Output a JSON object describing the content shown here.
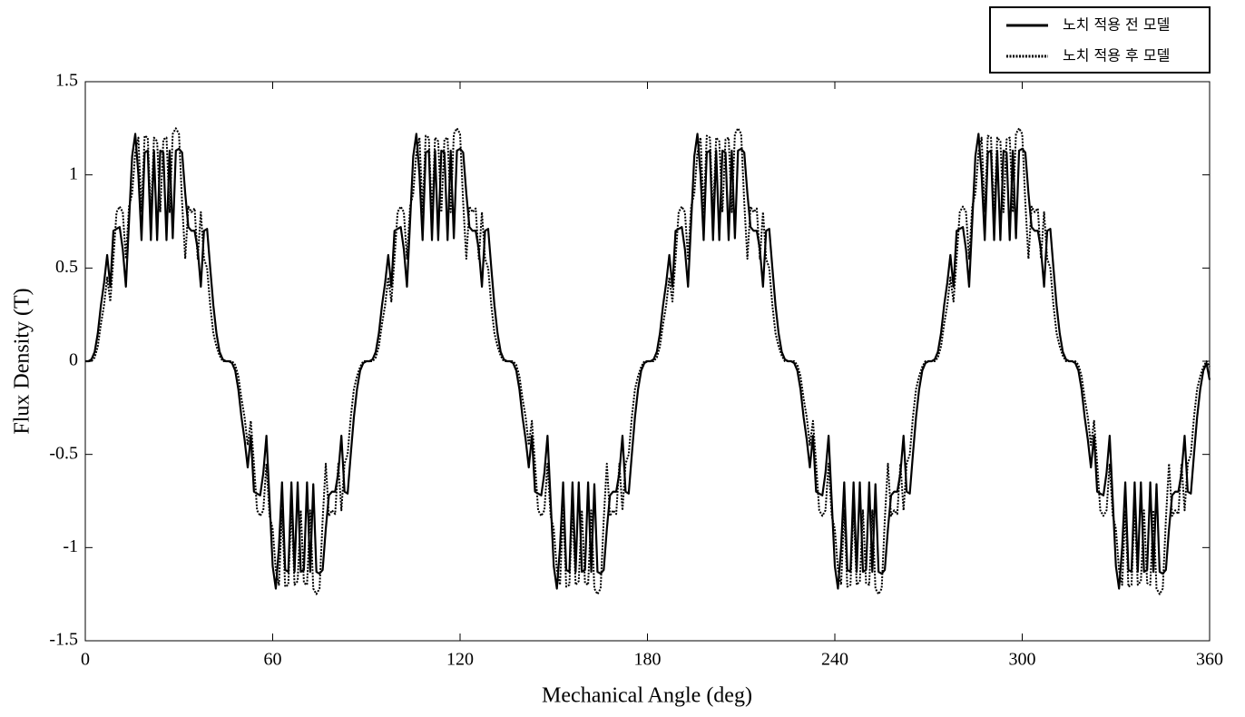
{
  "chart_data": {
    "type": "line",
    "xlabel": "Mechanical Angle (deg)",
    "ylabel": "Flux Density (T)",
    "xlim": [
      0,
      360
    ],
    "xticks": [
      0,
      60,
      120,
      180,
      240,
      300,
      360
    ],
    "ylim": [
      -1.5,
      1.5
    ],
    "yticks": [
      -1.5,
      -1,
      -0.5,
      0,
      0.5,
      1,
      1.5
    ],
    "grid": false,
    "legend": "upper right",
    "x": [
      0,
      1,
      2,
      3,
      4,
      5,
      6,
      7,
      8,
      9,
      10,
      11,
      12,
      13,
      14,
      15,
      16,
      17,
      18,
      19,
      20,
      21,
      22,
      23,
      24,
      25,
      26,
      27,
      28,
      29,
      30,
      31,
      32,
      33,
      34,
      35,
      36,
      37,
      38,
      39,
      40,
      41,
      42,
      43,
      44,
      45,
      46,
      47,
      48,
      49,
      50,
      51,
      52,
      53,
      54,
      55,
      56,
      57,
      58,
      59,
      60,
      61,
      62,
      63,
      64,
      65,
      66,
      67,
      68,
      69,
      70,
      71,
      72,
      73,
      74,
      75,
      76,
      77,
      78,
      79,
      80,
      81,
      82,
      83,
      84,
      85,
      86,
      87,
      88,
      89,
      90,
      91,
      92,
      93,
      94,
      95,
      96,
      97,
      98,
      99,
      100,
      101,
      102,
      103,
      104,
      105,
      106,
      107,
      108,
      109,
      110,
      111,
      112,
      113,
      114,
      115,
      116,
      117,
      118,
      119,
      120,
      121,
      122,
      123,
      124,
      125,
      126,
      127,
      128,
      129,
      130,
      131,
      132,
      133,
      134,
      135,
      136,
      137,
      138,
      139,
      140,
      141,
      142,
      143,
      144,
      145,
      146,
      147,
      148,
      149,
      150,
      151,
      152,
      153,
      154,
      155,
      156,
      157,
      158,
      159,
      160,
      161,
      162,
      163,
      164,
      165,
      166,
      167,
      168,
      169,
      170,
      171,
      172,
      173,
      174,
      175,
      176,
      177,
      178,
      179,
      180,
      181,
      182,
      183,
      184,
      185,
      186,
      187,
      188,
      189,
      190,
      191,
      192,
      193,
      194,
      195,
      196,
      197,
      198,
      199,
      200,
      201,
      202,
      203,
      204,
      205,
      206,
      207,
      208,
      209,
      210,
      211,
      212,
      213,
      214,
      215,
      216,
      217,
      218,
      219,
      220,
      221,
      222,
      223,
      224,
      225,
      226,
      227,
      228,
      229,
      230,
      231,
      232,
      233,
      234,
      235,
      236,
      237,
      238,
      239,
      240,
      241,
      242,
      243,
      244,
      245,
      246,
      247,
      248,
      249,
      250,
      251,
      252,
      253,
      254,
      255,
      256,
      257,
      258,
      259,
      260,
      261,
      262,
      263,
      264,
      265,
      266,
      267,
      268,
      269,
      270,
      271,
      272,
      273,
      274,
      275,
      276,
      277,
      278,
      279,
      280,
      281,
      282,
      283,
      284,
      285,
      286,
      287,
      288,
      289,
      290,
      291,
      292,
      293,
      294,
      295,
      296,
      297,
      298,
      299,
      300,
      301,
      302,
      303,
      304,
      305,
      306,
      307,
      308,
      309,
      310,
      311,
      312,
      313,
      314,
      315,
      316,
      317,
      318,
      319,
      320,
      321,
      322,
      323,
      324,
      325,
      326,
      327,
      328,
      329,
      330,
      331,
      332,
      333,
      334,
      335,
      336,
      337,
      338,
      339,
      340,
      341,
      342,
      343,
      344,
      345,
      346,
      347,
      348,
      349,
      350,
      351,
      352,
      353,
      354,
      355,
      356,
      357,
      358,
      359,
      360
    ],
    "series": [
      {
        "name": "노치 적용 전 모델",
        "color": "#000000",
        "style": "solid",
        "values": [
          0,
          0,
          0.01,
          0.05,
          0.15,
          0.3,
          0.42,
          0.57,
          0.4,
          0.7,
          0.71,
          0.72,
          0.6,
          0.4,
          0.75,
          1.1,
          1.22,
          1,
          0.65,
          1.12,
          1.13,
          0.65,
          1.13,
          0.65,
          1.13,
          1.12,
          0.65,
          1.13,
          0.66,
          1.13,
          1.14,
          1.12,
          0.9,
          0.72,
          0.7,
          0.7,
          0.6,
          0.4,
          0.7,
          0.71,
          0.5,
          0.3,
          0.15,
          0.05,
          0.01,
          0,
          0,
          -0.01,
          -0.05,
          -0.15,
          -0.3,
          -0.42,
          -0.57,
          -0.4,
          -0.7,
          -0.71,
          -0.72,
          -0.6,
          -0.4,
          -0.75,
          -1.1,
          -1.22,
          -1,
          -0.65,
          -1.12,
          -1.13,
          -0.65,
          -1.13,
          -0.65,
          -1.13,
          -1.12,
          -0.65,
          -1.13,
          -0.66,
          -1.13,
          -1.14,
          -1.12,
          -0.9,
          -0.72,
          -0.7,
          -0.7,
          -0.6,
          -0.4,
          -0.7,
          -0.71,
          -0.5,
          -0.3,
          -0.15,
          -0.05,
          -0.01,
          0,
          0,
          0.01,
          0.05,
          0.15,
          0.3,
          0.42,
          0.57,
          0.4,
          0.7,
          0.71,
          0.72,
          0.6,
          0.4,
          0.75,
          1.1,
          1.22,
          1,
          0.65,
          1.12,
          1.13,
          0.65,
          1.13,
          0.65,
          1.13,
          1.12,
          0.65,
          1.13,
          0.66,
          1.13,
          1.14,
          1.12,
          0.9,
          0.72,
          0.7,
          0.7,
          0.6,
          0.4,
          0.7,
          0.71,
          0.5,
          0.3,
          0.15,
          0.05,
          0.01,
          0,
          0,
          -0.01,
          -0.05,
          -0.15,
          -0.3,
          -0.42,
          -0.57,
          -0.4,
          -0.7,
          -0.71,
          -0.72,
          -0.6,
          -0.4,
          -0.75,
          -1.1,
          -1.22,
          -1,
          -0.65,
          -1.12,
          -1.13,
          -0.65,
          -1.13,
          -0.65,
          -1.13,
          -1.12,
          -0.65,
          -1.13,
          -0.66,
          -1.13,
          -1.14,
          -1.12,
          -0.9,
          -0.72,
          -0.7,
          -0.7,
          -0.6,
          -0.4,
          -0.7,
          -0.71,
          -0.5,
          -0.3,
          -0.15,
          -0.05,
          -0.01,
          0,
          0,
          0.01,
          0.05,
          0.15,
          0.3,
          0.42,
          0.57,
          0.4,
          0.7,
          0.71,
          0.72,
          0.6,
          0.4,
          0.75,
          1.1,
          1.22,
          1,
          0.65,
          1.12,
          1.13,
          0.65,
          1.13,
          0.65,
          1.13,
          1.12,
          0.65,
          1.13,
          0.66,
          1.13,
          1.14,
          1.12,
          0.9,
          0.72,
          0.7,
          0.7,
          0.6,
          0.4,
          0.7,
          0.71,
          0.5,
          0.3,
          0.15,
          0.05,
          0.01,
          0,
          0,
          -0.01,
          -0.05,
          -0.15,
          -0.3,
          -0.42,
          -0.57,
          -0.4,
          -0.7,
          -0.71,
          -0.72,
          -0.6,
          -0.4,
          -0.75,
          -1.1,
          -1.22,
          -1,
          -0.65,
          -1.12,
          -1.13,
          -0.65,
          -1.13,
          -0.65,
          -1.13,
          -1.12,
          -0.65,
          -1.13,
          -0.66,
          -1.13,
          -1.14,
          -1.12,
          -0.9,
          -0.72,
          -0.7,
          -0.7,
          -0.6,
          -0.4,
          -0.7,
          -0.71,
          -0.5,
          -0.3,
          -0.15,
          -0.05,
          -0.01,
          0,
          0,
          0.01,
          0.05,
          0.15,
          0.3,
          0.42,
          0.57,
          0.4,
          0.7,
          0.71,
          0.72,
          0.6,
          0.4,
          0.75,
          1.1,
          1.22,
          1,
          0.65,
          1.12,
          1.13,
          0.65,
          1.13,
          0.65,
          1.13,
          1.12,
          0.65,
          1.13,
          0.66,
          1.13,
          1.14,
          1.12,
          0.9,
          0.72,
          0.7,
          0.7,
          0.6,
          0.4,
          0.7,
          0.71,
          0.5,
          0.3,
          0.15,
          0.05,
          0.01,
          0,
          0,
          -0.01,
          -0.05,
          -0.15,
          -0.3,
          -0.42,
          -0.57,
          -0.4,
          -0.7,
          -0.71,
          -0.72,
          -0.6,
          -0.4,
          -0.75,
          -1.1,
          -1.22,
          -1,
          -0.65,
          -1.12,
          -1.13,
          -0.65,
          -1.13,
          -0.65,
          -1.13,
          -1.12,
          -0.65,
          -1.13,
          -0.66,
          -1.13,
          -1.14,
          -1.12,
          -0.9,
          -0.72,
          -0.7,
          -0.7,
          -0.6,
          -0.4,
          -0.7,
          -0.71,
          -0.5,
          -0.3,
          -0.15,
          -0.05,
          -0.01,
          -0.1
        ]
      },
      {
        "name": "노치 적용 후 모델",
        "color": "#000000",
        "style": "dotted",
        "values": [
          0,
          0,
          0,
          0.02,
          0.08,
          0.2,
          0.3,
          0.45,
          0.32,
          0.55,
          0.8,
          0.83,
          0.8,
          0.55,
          0.83,
          0.9,
          1.12,
          1.2,
          0.8,
          1.21,
          1.2,
          0.78,
          1.2,
          1.18,
          0.8,
          1.19,
          1.2,
          0.8,
          1.22,
          1.25,
          1.22,
          0.85,
          0.55,
          0.83,
          0.8,
          0.82,
          0.55,
          0.8,
          0.55,
          0.5,
          0.3,
          0.15,
          0.08,
          0.03,
          0,
          0,
          0,
          0,
          -0.02,
          -0.08,
          -0.2,
          -0.3,
          -0.45,
          -0.32,
          -0.55,
          -0.8,
          -0.83,
          -0.8,
          -0.55,
          -0.83,
          -0.9,
          -1.12,
          -1.2,
          -0.8,
          -1.21,
          -1.2,
          -0.78,
          -1.2,
          -1.18,
          -0.8,
          -1.19,
          -1.2,
          -0.8,
          -1.22,
          -1.25,
          -1.22,
          -0.85,
          -0.55,
          -0.83,
          -0.8,
          -0.82,
          -0.55,
          -0.8,
          -0.55,
          -0.5,
          -0.3,
          -0.15,
          -0.08,
          -0.03,
          0,
          0,
          0,
          0,
          0.02,
          0.08,
          0.2,
          0.3,
          0.45,
          0.32,
          0.55,
          0.8,
          0.83,
          0.8,
          0.55,
          0.83,
          0.9,
          1.12,
          1.2,
          0.8,
          1.21,
          1.2,
          0.78,
          1.2,
          1.18,
          0.8,
          1.19,
          1.2,
          0.8,
          1.22,
          1.25,
          1.22,
          0.85,
          0.55,
          0.83,
          0.8,
          0.82,
          0.55,
          0.8,
          0.55,
          0.5,
          0.3,
          0.15,
          0.08,
          0.03,
          0,
          0,
          0,
          0,
          -0.02,
          -0.08,
          -0.2,
          -0.3,
          -0.45,
          -0.32,
          -0.55,
          -0.8,
          -0.83,
          -0.8,
          -0.55,
          -0.83,
          -0.9,
          -1.12,
          -1.2,
          -0.8,
          -1.21,
          -1.2,
          -0.78,
          -1.2,
          -1.18,
          -0.8,
          -1.19,
          -1.2,
          -0.8,
          -1.22,
          -1.25,
          -1.22,
          -0.85,
          -0.55,
          -0.83,
          -0.8,
          -0.82,
          -0.55,
          -0.8,
          -0.55,
          -0.5,
          -0.3,
          -0.15,
          -0.08,
          -0.03,
          0,
          0,
          0,
          0,
          0.02,
          0.08,
          0.2,
          0.3,
          0.45,
          0.32,
          0.55,
          0.8,
          0.83,
          0.8,
          0.55,
          0.83,
          0.9,
          1.12,
          1.2,
          0.8,
          1.21,
          1.2,
          0.78,
          1.2,
          1.18,
          0.8,
          1.19,
          1.2,
          0.8,
          1.22,
          1.25,
          1.22,
          0.85,
          0.55,
          0.83,
          0.8,
          0.82,
          0.55,
          0.8,
          0.55,
          0.5,
          0.3,
          0.15,
          0.08,
          0.03,
          0,
          0,
          0,
          0,
          -0.02,
          -0.08,
          -0.2,
          -0.3,
          -0.45,
          -0.32,
          -0.55,
          -0.8,
          -0.83,
          -0.8,
          -0.55,
          -0.83,
          -0.9,
          -1.12,
          -1.2,
          -0.8,
          -1.21,
          -1.2,
          -0.78,
          -1.2,
          -1.18,
          -0.8,
          -1.19,
          -1.2,
          -0.8,
          -1.22,
          -1.25,
          -1.22,
          -0.85,
          -0.55,
          -0.83,
          -0.8,
          -0.82,
          -0.55,
          -0.8,
          -0.55,
          -0.5,
          -0.3,
          -0.15,
          -0.08,
          -0.03,
          0,
          0,
          0,
          0,
          0.02,
          0.08,
          0.2,
          0.3,
          0.45,
          0.32,
          0.55,
          0.8,
          0.83,
          0.8,
          0.55,
          0.83,
          0.9,
          1.12,
          1.2,
          0.8,
          1.21,
          1.2,
          0.78,
          1.2,
          1.18,
          0.8,
          1.19,
          1.2,
          0.8,
          1.22,
          1.25,
          1.22,
          0.85,
          0.55,
          0.83,
          0.8,
          0.82,
          0.55,
          0.8,
          0.55,
          0.5,
          0.3,
          0.15,
          0.08,
          0.03,
          0,
          0,
          0,
          0,
          -0.02,
          -0.08,
          -0.2,
          -0.3,
          -0.45,
          -0.32,
          -0.55,
          -0.8,
          -0.83,
          -0.8,
          -0.55,
          -0.83,
          -0.9,
          -1.12,
          -1.2,
          -0.8,
          -1.21,
          -1.2,
          -0.78,
          -1.2,
          -1.18,
          -0.8,
          -1.19,
          -1.2,
          -0.8,
          -1.22,
          -1.25,
          -1.22,
          -0.85,
          -0.55,
          -0.83,
          -0.8,
          -0.82,
          -0.55,
          -0.8,
          -0.55,
          -0.5,
          -0.3,
          -0.15,
          -0.08,
          -0.03,
          0,
          -0.03
        ]
      }
    ]
  }
}
